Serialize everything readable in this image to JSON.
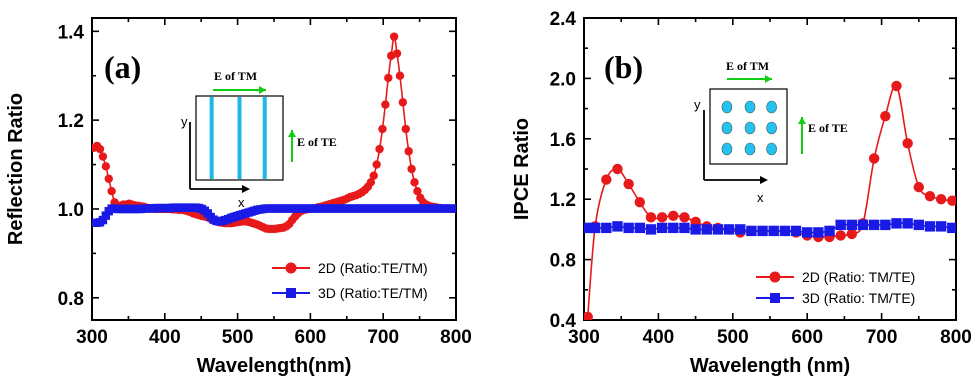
{
  "chart_data": [
    {
      "type": "line",
      "panel_label": "(a)",
      "xlabel": "Wavelength(nm)",
      "ylabel": "Reflection Ratio",
      "xlim": [
        300,
        800
      ],
      "ylim": [
        0.75,
        1.43
      ],
      "xticks": [
        "300",
        "400",
        "500",
        "600",
        "700",
        "800"
      ],
      "yticks": [
        "0.8",
        "1.0",
        "1.2",
        "1.4"
      ],
      "legend_position": "bottom-right",
      "inset": {
        "top_label": "E of TM",
        "side_label": "E of TE",
        "x_axis": "x",
        "y_axis": "y"
      },
      "series": [
        {
          "name": "2D (Ratio:TE/TM)",
          "color": "#e8191b",
          "marker": "circle",
          "x": [
            303,
            307,
            311,
            315,
            319,
            323,
            327,
            331,
            335,
            339,
            343,
            347,
            351,
            355,
            359,
            363,
            367,
            371,
            375,
            379,
            383,
            387,
            391,
            395,
            399,
            403,
            407,
            411,
            415,
            419,
            423,
            427,
            431,
            435,
            439,
            443,
            447,
            451,
            455,
            459,
            463,
            467,
            471,
            475,
            479,
            483,
            487,
            491,
            495,
            499,
            503,
            507,
            511,
            515,
            519,
            523,
            527,
            531,
            535,
            539,
            543,
            547,
            551,
            555,
            559,
            563,
            567,
            571,
            575,
            579,
            583,
            587,
            591,
            595,
            599,
            603,
            607,
            611,
            615,
            619,
            623,
            627,
            631,
            635,
            639,
            643,
            647,
            651,
            655,
            659,
            663,
            667,
            671,
            675,
            679,
            683,
            687,
            691,
            695,
            699,
            703,
            707,
            711,
            715,
            719,
            723,
            727,
            731,
            735,
            739,
            743,
            747,
            751,
            755,
            759,
            763,
            767,
            771,
            775,
            779,
            783,
            787,
            791,
            795,
            799
          ],
          "y": [
            1.138,
            1.142,
            1.135,
            1.118,
            1.096,
            1.068,
            1.04,
            1.015,
            1.008,
            1.007,
            1.01,
            1.01,
            1.012,
            1.01,
            1.008,
            1.007,
            1.006,
            1.005,
            1.003,
            1.002,
            1.001,
            1.0,
            1.0,
            1.0,
            1.0,
            1.0,
            1.0,
            0.999,
            0.999,
            0.998,
            0.998,
            0.997,
            0.995,
            0.993,
            0.99,
            0.988,
            0.986,
            0.984,
            0.983,
            0.981,
            0.978,
            0.975,
            0.972,
            0.97,
            0.969,
            0.968,
            0.968,
            0.968,
            0.969,
            0.97,
            0.971,
            0.972,
            0.972,
            0.971,
            0.969,
            0.967,
            0.965,
            0.962,
            0.959,
            0.956,
            0.955,
            0.955,
            0.955,
            0.956,
            0.957,
            0.958,
            0.961,
            0.966,
            0.975,
            0.983,
            0.99,
            0.995,
            0.998,
            0.999,
            1.0,
            1.001,
            1.002,
            1.004,
            1.005,
            1.007,
            1.009,
            1.011,
            1.013,
            1.015,
            1.017,
            1.019,
            1.021,
            1.024,
            1.027,
            1.029,
            1.031,
            1.034,
            1.038,
            1.043,
            1.05,
            1.06,
            1.075,
            1.1,
            1.135,
            1.18,
            1.235,
            1.295,
            1.345,
            1.388,
            1.35,
            1.3,
            1.24,
            1.18,
            1.13,
            1.09,
            1.06,
            1.04,
            1.025,
            1.015,
            1.01,
            1.007,
            1.005,
            1.004,
            1.003,
            1.002,
            1.001,
            1.001,
            1.001,
            1.0,
            1.0
          ]
        },
        {
          "name": "3D (Ratio:TE/TM)",
          "color": "#1a1ae6",
          "marker": "square",
          "x": [
            303,
            307,
            311,
            315,
            319,
            323,
            327,
            331,
            335,
            339,
            343,
            347,
            351,
            355,
            359,
            363,
            367,
            371,
            375,
            379,
            383,
            387,
            391,
            395,
            399,
            403,
            407,
            411,
            415,
            419,
            423,
            427,
            431,
            435,
            439,
            443,
            447,
            451,
            455,
            459,
            463,
            467,
            471,
            475,
            479,
            483,
            487,
            491,
            495,
            499,
            503,
            507,
            511,
            515,
            519,
            523,
            527,
            531,
            535,
            539,
            543,
            547,
            551,
            555,
            559,
            563,
            567,
            571,
            575,
            579,
            583,
            587,
            591,
            595,
            599,
            603,
            607,
            611,
            615,
            619,
            623,
            627,
            631,
            635,
            639,
            643,
            647,
            651,
            655,
            659,
            663,
            667,
            671,
            675,
            679,
            683,
            687,
            691,
            695,
            699,
            703,
            707,
            711,
            715,
            719,
            723,
            727,
            731,
            735,
            739,
            743,
            747,
            751,
            755,
            759,
            763,
            767,
            771,
            775,
            779,
            783,
            787,
            791,
            795,
            799
          ],
          "y": [
            0.969,
            0.969,
            0.97,
            0.975,
            0.985,
            0.995,
            1.001,
            1.001,
            1.0,
            1.0,
            1.0,
            1.0,
            1.0,
            1.0,
            1.0,
            1.0,
            1.0,
            1.001,
            1.001,
            1.001,
            1.001,
            1.002,
            1.002,
            1.002,
            1.002,
            1.002,
            1.002,
            1.003,
            1.003,
            1.003,
            1.003,
            1.003,
            1.003,
            1.003,
            1.003,
            1.003,
            1.002,
            1.0,
            0.996,
            0.99,
            0.982,
            0.976,
            0.973,
            0.972,
            0.973,
            0.975,
            0.977,
            0.98,
            0.982,
            0.984,
            0.986,
            0.988,
            0.99,
            0.992,
            0.994,
            0.996,
            0.998,
            0.999,
            1.0,
            1.001,
            1.001,
            1.001,
            1.001,
            1.001,
            1.001,
            1.001,
            1.001,
            1.001,
            1.001,
            1.001,
            1.001,
            1.001,
            1.001,
            1.001,
            1.001,
            1.001,
            1.001,
            1.001,
            1.001,
            1.001,
            1.001,
            1.001,
            1.001,
            1.001,
            1.001,
            1.001,
            1.001,
            1.001,
            1.001,
            1.001,
            1.001,
            1.001,
            1.001,
            1.001,
            1.001,
            1.001,
            1.001,
            1.001,
            1.001,
            1.001,
            1.001,
            1.001,
            1.001,
            1.001,
            1.001,
            1.001,
            1.001,
            1.001,
            1.001,
            1.001,
            1.001,
            1.001,
            1.001,
            1.001,
            1.001,
            1.001,
            1.001,
            1.001,
            1.001,
            1.001,
            1.001,
            1.001,
            1.001,
            1.001,
            1.001
          ]
        }
      ]
    },
    {
      "type": "line",
      "panel_label": "(b)",
      "xlabel": "Wavelength (nm)",
      "ylabel": "IPCE Ratio",
      "xlim": [
        300,
        800
      ],
      "ylim": [
        0.4,
        2.4
      ],
      "xticks": [
        "300",
        "400",
        "500",
        "600",
        "700",
        "800"
      ],
      "yticks": [
        "0.4",
        "0.8",
        "1.2",
        "1.6",
        "2.0",
        "2.4"
      ],
      "legend_position": "bottom-right",
      "inset": {
        "top_label": "E of TM",
        "side_label": "E of TE",
        "x_axis": "x",
        "y_axis": "y"
      },
      "series": [
        {
          "name": "2D (Ratio: TM/TE)",
          "color": "#e8191b",
          "marker": "circle",
          "x": [
            305,
            315,
            330,
            345,
            360,
            375,
            390,
            405,
            420,
            435,
            450,
            465,
            480,
            495,
            510,
            525,
            540,
            555,
            570,
            585,
            600,
            615,
            630,
            645,
            660,
            675,
            690,
            705,
            720,
            735,
            750,
            765,
            780,
            795
          ],
          "y": [
            0.42,
            1.02,
            1.33,
            1.4,
            1.3,
            1.18,
            1.08,
            1.08,
            1.09,
            1.08,
            1.05,
            1.02,
            1.01,
            1.0,
            0.98,
            0.99,
            0.99,
            0.99,
            0.99,
            0.98,
            0.96,
            0.95,
            0.95,
            0.96,
            0.97,
            1.04,
            1.47,
            1.75,
            1.95,
            1.57,
            1.28,
            1.22,
            1.2,
            1.19
          ]
        },
        {
          "name": "3D (Ratio: TM/TE)",
          "color": "#1a1ae6",
          "marker": "square",
          "x": [
            305,
            315,
            330,
            345,
            360,
            375,
            390,
            405,
            420,
            435,
            450,
            465,
            480,
            495,
            510,
            525,
            540,
            555,
            570,
            585,
            600,
            615,
            630,
            645,
            660,
            675,
            690,
            705,
            720,
            735,
            750,
            765,
            780,
            795
          ],
          "y": [
            1.01,
            1.01,
            1.01,
            1.02,
            1.01,
            1.01,
            1.0,
            1.01,
            1.01,
            1.01,
            1.0,
            1.0,
            1.0,
            1.0,
            1.0,
            0.99,
            0.99,
            0.99,
            0.99,
            0.99,
            0.98,
            0.98,
            0.99,
            1.03,
            1.03,
            1.03,
            1.03,
            1.03,
            1.04,
            1.04,
            1.03,
            1.02,
            1.02,
            1.01
          ]
        }
      ]
    }
  ]
}
